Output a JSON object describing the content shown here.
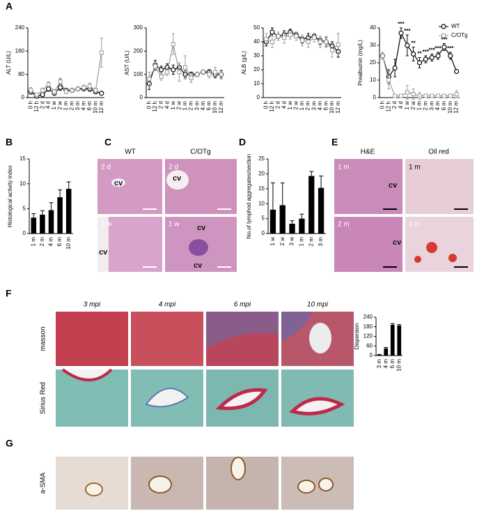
{
  "chart_data": [
    {
      "type": "line",
      "ylabel": "ALT (U/L)",
      "categories": [
        "0 h",
        "12 h",
        "2 d",
        "4 d",
        "1 w",
        "2 w",
        "1 m",
        "2 m",
        "3 m",
        "4 m",
        "6 m",
        "10 m",
        "12 m"
      ],
      "ylim": [
        0,
        240
      ],
      "yticks": [
        0,
        80,
        160,
        240
      ],
      "series": [
        {
          "color": "#000000",
          "marker": "circle",
          "values": [
            20,
            5,
            10,
            30,
            15,
            35,
            25,
            25,
            30,
            30,
            30,
            20,
            15
          ],
          "errors": [
            8,
            4,
            5,
            8,
            6,
            10,
            6,
            5,
            6,
            6,
            8,
            6,
            5
          ],
          "significance": [
            null,
            null,
            null,
            null,
            null,
            "*",
            null,
            null,
            null,
            null,
            null,
            null,
            null
          ]
        },
        {
          "color": "#999999",
          "marker": "square",
          "values": [
            25,
            10,
            25,
            45,
            20,
            55,
            20,
            25,
            30,
            35,
            40,
            25,
            155
          ],
          "errors": [
            10,
            5,
            8,
            10,
            8,
            12,
            6,
            6,
            6,
            8,
            10,
            8,
            50
          ]
        }
      ]
    },
    {
      "type": "line",
      "ylabel": "AST (U/L)",
      "categories": [
        "0 h",
        "12 h",
        "2 d",
        "4 d",
        "1 w",
        "2 w",
        "1 m",
        "2 m",
        "3 m",
        "4 m",
        "6 m",
        "10 m",
        "12 m"
      ],
      "ylim": [
        0,
        300
      ],
      "yticks": [
        0,
        100,
        200,
        300
      ],
      "series": [
        {
          "color": "#000000",
          "marker": "circle",
          "values": [
            60,
            140,
            120,
            130,
            120,
            130,
            100,
            100,
            100,
            110,
            110,
            100,
            100
          ],
          "errors": [
            25,
            20,
            15,
            15,
            20,
            20,
            15,
            10,
            10,
            10,
            10,
            15,
            15
          ]
        },
        {
          "color": "#999999",
          "marker": "square",
          "values": [
            80,
            135,
            90,
            110,
            230,
            110,
            130,
            85,
            100,
            110,
            100,
            110,
            100
          ],
          "errors": [
            30,
            20,
            15,
            15,
            45,
            40,
            50,
            20,
            10,
            10,
            15,
            20,
            20
          ]
        }
      ]
    },
    {
      "type": "line",
      "ylabel": "ALB (g/L)",
      "categories": [
        "0 h",
        "12 h",
        "2 d",
        "4 d",
        "1 w",
        "2 w",
        "1 m",
        "2 m",
        "3 m",
        "4 m",
        "6 m",
        "10 m",
        "12 m"
      ],
      "ylim": [
        0,
        50
      ],
      "yticks": [
        0,
        10,
        20,
        30,
        40,
        50
      ],
      "series": [
        {
          "color": "#000000",
          "marker": "circle",
          "values": [
            40,
            47,
            44,
            45,
            47,
            45,
            42,
            43,
            44,
            41,
            40,
            37,
            33
          ],
          "errors": [
            3,
            3,
            3,
            3,
            2,
            2,
            3,
            3,
            2,
            3,
            3,
            3,
            4
          ]
        },
        {
          "color": "#999999",
          "marker": "square",
          "values": [
            42,
            40,
            44,
            43,
            45,
            44,
            41,
            40,
            43,
            40,
            40,
            34,
            38
          ],
          "errors": [
            4,
            4,
            3,
            4,
            3,
            3,
            4,
            4,
            3,
            4,
            4,
            5,
            8
          ]
        }
      ]
    },
    {
      "type": "line",
      "ylabel": "Prealbumin (mg/L)",
      "categories": [
        "0 h",
        "12 h",
        "2 d",
        "4 d",
        "1 w",
        "2 w",
        "1 m",
        "2 m",
        "3 m",
        "4 m",
        "6 m",
        "10 m",
        "12 m"
      ],
      "ylim": [
        0,
        40
      ],
      "yticks": [
        0,
        10,
        20,
        30,
        40
      ],
      "legend": "upper right",
      "series": [
        {
          "name": "WT",
          "color": "#000000",
          "marker": "circle",
          "values": [
            24,
            12,
            17,
            37,
            30,
            25,
            20,
            22,
            23,
            24,
            29,
            24,
            15
          ],
          "errors": [
            2,
            4,
            5,
            3,
            6,
            4,
            3,
            2,
            2,
            2,
            2,
            2,
            1
          ],
          "significance": [
            null,
            null,
            null,
            "***",
            "***",
            "**",
            "**",
            "***",
            "***",
            "***",
            "***",
            "***",
            null
          ]
        },
        {
          "name": "C/OTg",
          "color": "#999999",
          "marker": "square",
          "values": [
            24,
            10,
            1,
            1,
            3,
            2,
            1,
            1,
            1,
            1,
            1,
            1,
            2
          ],
          "errors": [
            2,
            5,
            1,
            1,
            4,
            3,
            2,
            1,
            1,
            1,
            1,
            1,
            2
          ]
        }
      ]
    },
    {
      "type": "bar",
      "ylabel": "Histological activity index",
      "categories": [
        "1 m",
        "2 m",
        "4 m",
        "6 m",
        "10 m"
      ],
      "color": "#000000",
      "values": [
        3.2,
        3.8,
        4.7,
        7.3,
        9.0
      ],
      "errors": [
        0.8,
        0.8,
        1.5,
        1.5,
        1.4
      ],
      "ylim": [
        0,
        15
      ],
      "yticks": [
        0,
        5,
        10,
        15
      ]
    },
    {
      "type": "bar",
      "ylabel": "No.of lymphod aggregates/section",
      "categories": [
        "1 w",
        "2 w",
        "3 w",
        "1 m",
        "2 m",
        "3 m"
      ],
      "color": "#000000",
      "values": [
        8,
        9.5,
        3.3,
        5,
        19.3,
        15.3
      ],
      "errors": [
        9,
        7.5,
        1,
        1.5,
        1.5,
        4
      ],
      "ylim": [
        0,
        25
      ],
      "yticks": [
        0,
        5,
        10,
        15,
        20,
        25
      ]
    },
    {
      "type": "bar",
      "ylabel": "Dispersion",
      "categories": [
        "3 m",
        "4 m",
        "6 m",
        "10 m"
      ],
      "color": "#000000",
      "values": [
        5,
        45,
        192,
        188
      ],
      "errors": [
        2,
        6,
        8,
        6
      ],
      "ylim": [
        0,
        240
      ],
      "yticks": [
        0,
        60,
        120,
        180,
        240
      ]
    }
  ],
  "figure": {
    "letters": [
      "A",
      "B",
      "C",
      "D",
      "E",
      "F",
      "G"
    ],
    "C": {
      "columns": [
        "WT",
        "C/OTg"
      ],
      "insets": [
        "2 d",
        "2 d",
        "1 w",
        "1 w"
      ],
      "vessels": [
        "cv",
        "cv",
        "cv",
        "cv",
        "cv"
      ]
    },
    "E": {
      "columns": [
        "H&E",
        "Oil red"
      ],
      "insets": [
        "1 m",
        "1 m",
        "2 m",
        "2 m"
      ],
      "vessels": [
        "cv",
        "cv"
      ]
    },
    "F": {
      "columns": [
        "3 mpi",
        "4 mpi",
        "6 mpi",
        "10 mpi"
      ],
      "rows": [
        "masson",
        "Sirius Red"
      ]
    },
    "G": {
      "rows": [
        "a-SMA"
      ]
    }
  }
}
